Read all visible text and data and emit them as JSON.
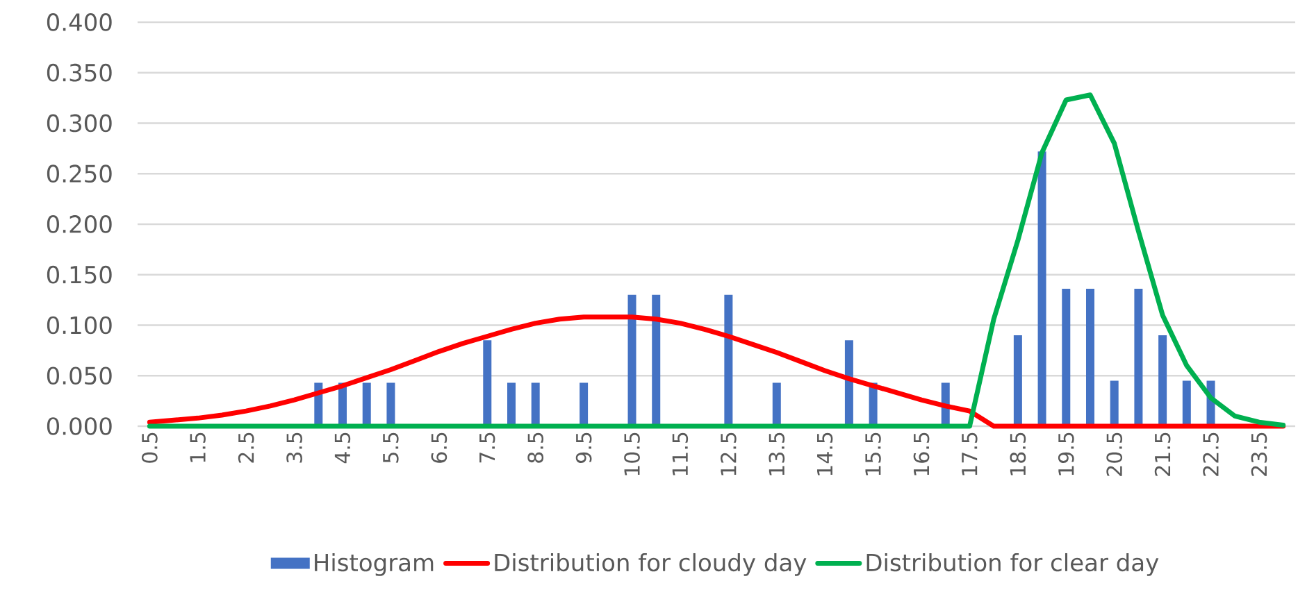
{
  "chart_data": {
    "type": "bar",
    "categories": [
      "0.5",
      null,
      "1.5",
      null,
      "2.5",
      null,
      "3.5",
      null,
      "4.5",
      null,
      "5.5",
      null,
      "6.5",
      null,
      "7.5",
      null,
      "8.5",
      null,
      "9.5",
      null,
      "10.5",
      null,
      "11.5",
      null,
      "12.5",
      null,
      "13.5",
      null,
      "14.5",
      null,
      "15.5",
      null,
      "16.5",
      null,
      "17.5",
      null,
      "18.5",
      null,
      "19.5",
      null,
      "20.5",
      null,
      "21.5",
      null,
      "22.5",
      null,
      "23.5",
      null
    ],
    "series": [
      {
        "name": "Histogram",
        "color": "#4472c4",
        "values": [
          0,
          0,
          0,
          0,
          0,
          0,
          0,
          0.043,
          0.043,
          0.043,
          0.043,
          0,
          0,
          0,
          0.085,
          0.043,
          0.043,
          0,
          0.043,
          0,
          0.13,
          0.13,
          0,
          0,
          0.13,
          0,
          0.043,
          0,
          0,
          0.085,
          0.043,
          0,
          0,
          0.043,
          0,
          0,
          0.09,
          0.272,
          0.136,
          0.136,
          0.045,
          0.136,
          0.09,
          0.045,
          0.045,
          0,
          0,
          0
        ]
      },
      {
        "name": "Distribution for cloudy day",
        "type": "line",
        "color": "#ff0000",
        "values": [
          0.004,
          0.006,
          0.008,
          0.011,
          0.015,
          0.02,
          0.026,
          0.033,
          0.04,
          0.048,
          0.056,
          0.065,
          0.074,
          0.082,
          0.089,
          0.096,
          0.102,
          0.106,
          0.108,
          0.108,
          0.108,
          0.106,
          0.102,
          0.096,
          0.089,
          0.081,
          0.073,
          0.064,
          0.055,
          0.047,
          0.04,
          0.033,
          0.026,
          0.02,
          0.015,
          0,
          0,
          0,
          0,
          0,
          0,
          0,
          0,
          0,
          0,
          0,
          0,
          0
        ]
      },
      {
        "name": "Distribution for clear day",
        "type": "line",
        "color": "#00b050",
        "values": [
          0,
          0,
          0,
          0,
          0,
          0,
          0,
          0,
          0,
          0,
          0,
          0,
          0,
          0,
          0,
          0,
          0,
          0,
          0,
          0,
          0,
          0,
          0,
          0,
          0,
          0,
          0,
          0,
          0,
          0,
          0,
          0,
          0,
          0,
          0,
          0.106,
          0.184,
          0.271,
          0.323,
          0.328,
          0.28,
          0.193,
          0.11,
          0.06,
          0.028,
          0.01,
          0.004,
          0.001
        ]
      }
    ],
    "ylim": [
      0,
      0.4
    ],
    "yticks": [
      {
        "value": 0,
        "label": "0.000"
      },
      {
        "value": 0.05,
        "label": "0.050"
      },
      {
        "value": 0.1,
        "label": "0.100"
      },
      {
        "value": 0.15,
        "label": "0.150"
      },
      {
        "value": 0.2,
        "label": "0.200"
      },
      {
        "value": 0.25,
        "label": "0.250"
      },
      {
        "value": 0.3,
        "label": "0.300"
      },
      {
        "value": 0.35,
        "label": "0.350"
      },
      {
        "value": 0.4,
        "label": "0.400"
      }
    ],
    "grid": "y",
    "legend": "bottom",
    "marker": "none",
    "line_style": "solid"
  }
}
